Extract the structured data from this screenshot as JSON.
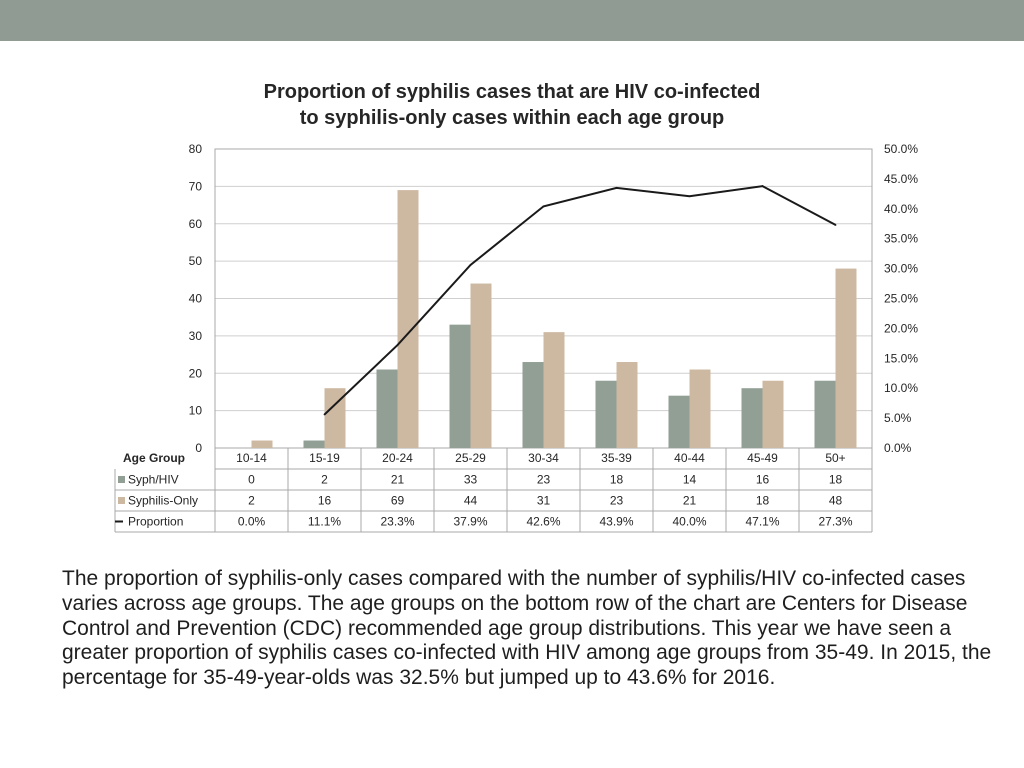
{
  "colors": {
    "band": "#909c93",
    "syph_hiv": "#919f95",
    "syphilis_only": "#cdb8a1",
    "proportion": "#1a1a1a",
    "grid": "#cfcfcf",
    "text": "#262626"
  },
  "chart_data": {
    "type": "bar",
    "title_lines": [
      "Proportion of syphilis cases that are HIV co-infected",
      "to syphilis-only cases within each age group"
    ],
    "categories": [
      "10-14",
      "15-19",
      "20-24",
      "25-29",
      "30-34",
      "35-39",
      "40-44",
      "45-49",
      "50+"
    ],
    "series": [
      {
        "name": "Syph/HIV",
        "type": "bar",
        "values": [
          0,
          2,
          21,
          33,
          23,
          18,
          14,
          16,
          18
        ]
      },
      {
        "name": "Syphilis-Only",
        "type": "bar",
        "values": [
          2,
          16,
          69,
          44,
          31,
          23,
          21,
          18,
          48
        ]
      },
      {
        "name": "Proportion",
        "type": "line",
        "axis": "right",
        "values": [
          null,
          5.6,
          17.2,
          30.6,
          40.4,
          43.5,
          42.1,
          43.8,
          37.3
        ],
        "table_labels": [
          "0.0%",
          "11.1%",
          "23.3%",
          "37.9%",
          "42.6%",
          "43.9%",
          "40.0%",
          "47.1%",
          "27.3%"
        ]
      }
    ],
    "y_left": {
      "min": 0,
      "max": 80,
      "ticks": [
        "0",
        "10",
        "20",
        "30",
        "40",
        "50",
        "60",
        "70",
        "80"
      ]
    },
    "y_right": {
      "min": 0,
      "max": 50,
      "ticks": [
        "0.0%",
        "5.0%",
        "10.0%",
        "15.0%",
        "20.0%",
        "25.0%",
        "30.0%",
        "35.0%",
        "40.0%",
        "45.0%",
        "50.0%"
      ]
    },
    "grid": true,
    "data_table": {
      "header_label": "Age Group"
    }
  },
  "description_text": "The proportion of syphilis-only cases compared with the number of syphilis/HIV co-infected cases varies across age groups.  The age groups on the bottom row of the chart are Centers for Disease Control and Prevention (CDC) recommended age group distributions. This year we have seen a greater proportion of syphilis cases co-infected with HIV among age groups from 35-49.  In 2015, the percentage for 35-49-year-olds was 32.5% but jumped up to 43.6% for 2016."
}
